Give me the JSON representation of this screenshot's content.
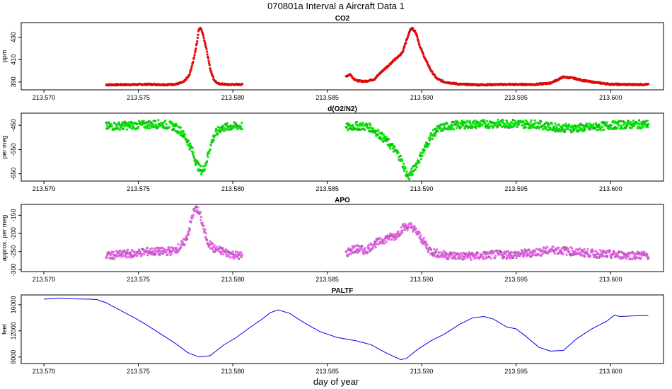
{
  "figure": {
    "title": "070801a   Interval a Aircraft Data 1",
    "xlabel": "day of year"
  },
  "chart_data": [
    {
      "type": "scatter",
      "title": "CO2",
      "ylabel": "ppm",
      "xlim": [
        213.5688,
        213.6028
      ],
      "ylim": [
        383,
        443
      ],
      "x_ticks": [
        "213.570",
        "213.575",
        "213.580",
        "213.585",
        "213.590",
        "213.595",
        "213.600"
      ],
      "y_ticks": [
        "390",
        "410",
        "430"
      ],
      "color": "#ff0000",
      "series": [
        {
          "segments": [
            [
              [
                213.5733,
                387.5
              ],
              [
                213.5745,
                387.6
              ],
              [
                213.5755,
                387.9
              ],
              [
                213.5765,
                387.6
              ],
              [
                213.577,
                388.0
              ],
              [
                213.5774,
                390.0
              ],
              [
                213.5777,
                396.0
              ],
              [
                213.5779,
                408.0
              ],
              [
                213.5781,
                425.0
              ],
              [
                213.5782,
                437.0
              ],
              [
                213.5783,
                438.0
              ],
              [
                213.5784,
                434.0
              ],
              [
                213.5786,
                420.0
              ],
              [
                213.5788,
                402.0
              ],
              [
                213.579,
                392.0
              ],
              [
                213.5792,
                388.5
              ],
              [
                213.5797,
                387.7
              ],
              [
                213.5805,
                387.8
              ]
            ],
            [
              [
                213.586,
                395.0
              ],
              [
                213.5862,
                397.0
              ],
              [
                213.5864,
                393.0
              ],
              [
                213.5866,
                391.0
              ],
              [
                213.587,
                390.5
              ],
              [
                213.5875,
                392.5
              ],
              [
                213.5878,
                398.0
              ],
              [
                213.5882,
                404.0
              ],
              [
                213.5885,
                409.0
              ],
              [
                213.5888,
                413.0
              ],
              [
                213.589,
                417.0
              ],
              [
                213.5891,
                423.0
              ],
              [
                213.5893,
                432.0
              ],
              [
                213.5894,
                437.0
              ],
              [
                213.5895,
                438.0
              ],
              [
                213.5897,
                434.0
              ],
              [
                213.5899,
                422.0
              ],
              [
                213.5902,
                410.0
              ],
              [
                213.5905,
                400.0
              ],
              [
                213.5908,
                393.0
              ],
              [
                213.5912,
                390.0
              ],
              [
                213.592,
                388.0
              ],
              [
                213.593,
                387.5
              ],
              [
                213.5945,
                387.8
              ],
              [
                213.596,
                387.8
              ],
              [
                213.5968,
                389.0
              ],
              [
                213.5972,
                392.0
              ],
              [
                213.5975,
                394.5
              ],
              [
                213.598,
                393.5
              ],
              [
                213.5985,
                391.5
              ],
              [
                213.599,
                390.0
              ],
              [
                213.5995,
                389.0
              ],
              [
                213.6,
                388.0
              ],
              [
                213.601,
                387.7
              ],
              [
                213.602,
                387.8
              ]
            ]
          ]
        }
      ]
    },
    {
      "type": "scatter",
      "title": "d(O2/N2)",
      "ylabel": "per meg",
      "xlim": [
        213.5688,
        213.6028
      ],
      "ylim": [
        -680,
        -400
      ],
      "x_ticks": [
        "213.570",
        "213.575",
        "213.580",
        "213.585",
        "213.590",
        "213.595",
        "213.600"
      ],
      "y_ticks": [
        "-650",
        "-550",
        "-450"
      ],
      "color": "#00ee00",
      "series": [
        {
          "segments": [
            [
              [
                213.5733,
                -455
              ],
              [
                213.574,
                -452
              ],
              [
                213.5748,
                -450
              ],
              [
                213.5755,
                -447
              ],
              [
                213.5762,
                -444
              ],
              [
                213.5768,
                -452
              ],
              [
                213.5772,
                -470
              ],
              [
                213.5775,
                -500
              ],
              [
                213.5778,
                -545
              ],
              [
                213.578,
                -590
              ],
              [
                213.5782,
                -625
              ],
              [
                213.5784,
                -640
              ],
              [
                213.5786,
                -600
              ],
              [
                213.5788,
                -540
              ],
              [
                213.579,
                -495
              ],
              [
                213.5793,
                -465
              ],
              [
                213.5798,
                -455
              ],
              [
                213.5805,
                -453
              ]
            ],
            [
              [
                213.586,
                -460
              ],
              [
                213.5863,
                -455
              ],
              [
                213.5867,
                -452
              ],
              [
                213.587,
                -455
              ],
              [
                213.5873,
                -460
              ],
              [
                213.5878,
                -490
              ],
              [
                213.5882,
                -520
              ],
              [
                213.5885,
                -545
              ],
              [
                213.5888,
                -575
              ],
              [
                213.589,
                -610
              ],
              [
                213.5892,
                -650
              ],
              [
                213.5893,
                -665
              ],
              [
                213.5895,
                -640
              ],
              [
                213.5898,
                -600
              ],
              [
                213.5902,
                -540
              ],
              [
                213.5905,
                -495
              ],
              [
                213.5908,
                -470
              ],
              [
                213.5912,
                -455
              ],
              [
                213.592,
                -448
              ],
              [
                213.593,
                -445
              ],
              [
                213.5945,
                -443
              ],
              [
                213.596,
                -445
              ],
              [
                213.597,
                -458
              ],
              [
                213.598,
                -462
              ],
              [
                213.599,
                -458
              ],
              [
                213.6,
                -450
              ],
              [
                213.601,
                -447
              ],
              [
                213.602,
                -446
              ]
            ]
          ]
        }
      ]
    },
    {
      "type": "scatter",
      "title": "APO",
      "ylabel": "approx. per meg",
      "xlim": [
        213.5688,
        213.6028
      ],
      "ylim": [
        -305,
        -120
      ],
      "x_ticks": [
        "213.570",
        "213.575",
        "213.580",
        "213.585",
        "213.590",
        "213.595",
        "213.600"
      ],
      "y_ticks": [
        "-300",
        "-250",
        "-200",
        "-150"
      ],
      "color": "#ee66ee",
      "series": [
        {
          "segments": [
            [
              [
                213.5733,
                -262
              ],
              [
                213.574,
                -258
              ],
              [
                213.5748,
                -255
              ],
              [
                213.5755,
                -250
              ],
              [
                213.5762,
                -250
              ],
              [
                213.5768,
                -248
              ],
              [
                213.5772,
                -238
              ],
              [
                213.5775,
                -220
              ],
              [
                213.5777,
                -185
              ],
              [
                213.5779,
                -145
              ],
              [
                213.5781,
                -130
              ],
              [
                213.5783,
                -155
              ],
              [
                213.5785,
                -195
              ],
              [
                213.5787,
                -225
              ],
              [
                213.579,
                -242
              ],
              [
                213.5795,
                -250
              ],
              [
                213.58,
                -258
              ],
              [
                213.5805,
                -262
              ]
            ],
            [
              [
                213.586,
                -255
              ],
              [
                213.5863,
                -245
              ],
              [
                213.5867,
                -243
              ],
              [
                213.587,
                -248
              ],
              [
                213.5874,
                -232
              ],
              [
                213.5878,
                -222
              ],
              [
                213.5882,
                -212
              ],
              [
                213.5886,
                -208
              ],
              [
                213.589,
                -185
              ],
              [
                213.5893,
                -180
              ],
              [
                213.5895,
                -182
              ],
              [
                213.5898,
                -200
              ],
              [
                213.5902,
                -230
              ],
              [
                213.5905,
                -250
              ],
              [
                213.591,
                -258
              ],
              [
                213.592,
                -262
              ],
              [
                213.593,
                -262
              ],
              [
                213.594,
                -258
              ],
              [
                213.595,
                -258
              ],
              [
                213.596,
                -252
              ],
              [
                213.597,
                -245
              ],
              [
                213.598,
                -250
              ],
              [
                213.599,
                -255
              ],
              [
                213.6,
                -258
              ],
              [
                213.601,
                -260
              ],
              [
                213.602,
                -260
              ]
            ]
          ]
        }
      ]
    },
    {
      "type": "line",
      "title": "PALTF",
      "ylabel": "feet",
      "xlim": [
        213.5688,
        213.6028
      ],
      "ylim": [
        7000,
        17500
      ],
      "x_ticks": [
        "213.570",
        "213.575",
        "213.580",
        "213.585",
        "213.590",
        "213.595",
        "213.600"
      ],
      "y_ticks": [
        "8000",
        "12000",
        "16000"
      ],
      "color": "#0000ee",
      "series": [
        {
          "segments": [
            [
              [
                213.57,
                16850
              ],
              [
                213.5708,
                17000
              ],
              [
                213.5715,
                16900
              ],
              [
                213.5725,
                16850
              ],
              [
                213.5728,
                16800
              ],
              [
                213.5733,
                16300
              ],
              [
                213.574,
                15200
              ],
              [
                213.5748,
                14000
              ],
              [
                213.5755,
                12800
              ],
              [
                213.5762,
                11500
              ],
              [
                213.577,
                10000
              ],
              [
                213.5776,
                8700
              ],
              [
                213.5782,
                8000
              ],
              [
                213.5788,
                8200
              ],
              [
                213.5795,
                9800
              ],
              [
                213.5802,
                11000
              ],
              [
                213.5808,
                12300
              ],
              [
                213.5815,
                13700
              ],
              [
                213.582,
                14800
              ],
              [
                213.5824,
                15200
              ],
              [
                213.583,
                14700
              ],
              [
                213.5838,
                13200
              ],
              [
                213.5846,
                11900
              ],
              [
                213.5855,
                11000
              ],
              [
                213.5865,
                10500
              ],
              [
                213.5873,
                9900
              ],
              [
                213.588,
                8800
              ],
              [
                213.5885,
                8100
              ],
              [
                213.5889,
                7600
              ],
              [
                213.5892,
                7800
              ],
              [
                213.5898,
                9200
              ],
              [
                213.5905,
                10500
              ],
              [
                213.5912,
                11500
              ],
              [
                213.592,
                13000
              ],
              [
                213.5927,
                14000
              ],
              [
                213.5933,
                14200
              ],
              [
                213.5938,
                13800
              ],
              [
                213.5945,
                12600
              ],
              [
                213.595,
                12300
              ],
              [
                213.5955,
                11200
              ],
              [
                213.5962,
                9500
              ],
              [
                213.5968,
                8900
              ],
              [
                213.5975,
                9000
              ],
              [
                213.5982,
                10800
              ],
              [
                213.599,
                12300
              ],
              [
                213.5998,
                13500
              ],
              [
                213.6002,
                14400
              ],
              [
                213.6005,
                14200
              ],
              [
                213.6012,
                14300
              ],
              [
                213.602,
                14350
              ]
            ]
          ]
        }
      ]
    }
  ]
}
